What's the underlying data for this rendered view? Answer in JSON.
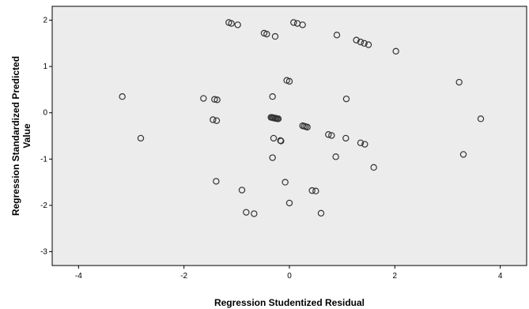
{
  "chart_data": {
    "type": "scatter",
    "title": "",
    "xlabel": "Regression Studentized Residual",
    "ylabel_lines": [
      "Regression Standardized Predicted",
      "Value"
    ],
    "xlim": [
      -4.5,
      4.5
    ],
    "ylim": [
      -3.3,
      2.3
    ],
    "xticks": [
      -4,
      -2,
      0,
      2,
      4
    ],
    "yticks": [
      -3,
      -2,
      -1,
      0,
      1,
      2
    ],
    "grid": false,
    "legend": "none",
    "colors": {
      "plot_bg": "#ececec",
      "marker_stroke": "#333333",
      "axis": "#000000"
    },
    "series": [
      {
        "points": [
          [
            -1.15,
            1.95
          ],
          [
            -1.1,
            1.93
          ],
          [
            -0.98,
            1.9
          ],
          [
            0.08,
            1.95
          ],
          [
            0.15,
            1.93
          ],
          [
            0.25,
            1.9
          ],
          [
            -0.48,
            1.72
          ],
          [
            -0.43,
            1.7
          ],
          [
            -0.27,
            1.65
          ],
          [
            0.9,
            1.68
          ],
          [
            1.27,
            1.57
          ],
          [
            1.35,
            1.53
          ],
          [
            1.42,
            1.5
          ],
          [
            1.5,
            1.47
          ],
          [
            2.02,
            1.33
          ],
          [
            -0.05,
            0.7
          ],
          [
            0.0,
            0.68
          ],
          [
            3.22,
            0.66
          ],
          [
            -3.17,
            0.35
          ],
          [
            -1.63,
            0.31
          ],
          [
            -1.42,
            0.29
          ],
          [
            -1.37,
            0.28
          ],
          [
            -0.32,
            0.35
          ],
          [
            1.08,
            0.3
          ],
          [
            -1.45,
            -0.15
          ],
          [
            -1.38,
            -0.17
          ],
          [
            3.63,
            -0.13
          ],
          [
            -0.35,
            -0.1
          ],
          [
            -0.33,
            -0.1
          ],
          [
            -0.31,
            -0.11
          ],
          [
            -0.29,
            -0.11
          ],
          [
            -0.27,
            -0.12
          ],
          [
            -0.25,
            -0.12
          ],
          [
            -0.23,
            -0.13
          ],
          [
            -0.21,
            -0.13
          ],
          [
            0.25,
            -0.28
          ],
          [
            0.28,
            -0.29
          ],
          [
            0.31,
            -0.3
          ],
          [
            0.34,
            -0.31
          ],
          [
            -2.82,
            -0.55
          ],
          [
            -0.3,
            -0.55
          ],
          [
            -0.17,
            -0.6
          ],
          [
            -0.16,
            -0.61
          ],
          [
            0.74,
            -0.47
          ],
          [
            0.8,
            -0.49
          ],
          [
            1.07,
            -0.55
          ],
          [
            1.35,
            -0.65
          ],
          [
            1.43,
            -0.68
          ],
          [
            -0.32,
            -0.97
          ],
          [
            0.88,
            -0.95
          ],
          [
            1.6,
            -1.18
          ],
          [
            3.3,
            -0.9
          ],
          [
            -1.39,
            -1.48
          ],
          [
            -0.08,
            -1.5
          ],
          [
            -0.9,
            -1.67
          ],
          [
            0.43,
            -1.68
          ],
          [
            0.5,
            -1.69
          ],
          [
            0.0,
            -1.95
          ],
          [
            -0.82,
            -2.15
          ],
          [
            -0.67,
            -2.18
          ],
          [
            0.6,
            -2.17
          ]
        ]
      }
    ]
  }
}
